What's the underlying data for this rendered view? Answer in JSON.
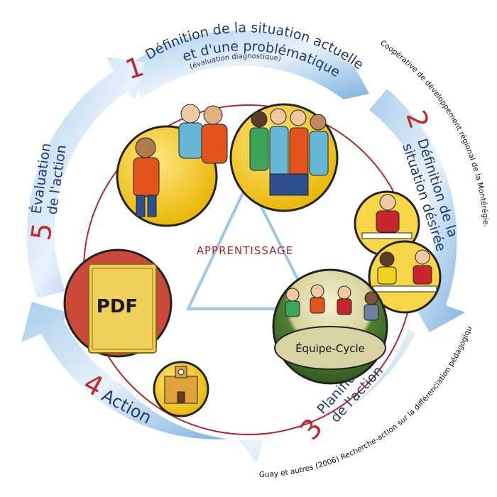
{
  "steps": [
    {
      "number": "1",
      "lines": [
        "Définition de la situation actuelle",
        "et d'une problématique"
      ],
      "sub": "(évaluation diagnostique)"
    },
    {
      "number": "2",
      "lines": [
        "Définition de la",
        "situation désirée"
      ]
    },
    {
      "number": "3",
      "lines": [
        "Planification",
        "de l'action"
      ]
    },
    {
      "number": "4",
      "lines": [
        "Action"
      ]
    },
    {
      "number": "5",
      "lines": [
        "Évaluation",
        "de l'action"
      ]
    }
  ],
  "center": {
    "label": "APPRENTISSAGE",
    "team_label": "Équipe-Cycle",
    "pdf_label": "PDF"
  },
  "credits": {
    "right": "Coopérative de développement régional de la Montérégie.",
    "bottom": "Guay et autres (2006) Recherche-action sur la différenciation pédagogique."
  },
  "colors": {
    "ring_blue": "#7fb2e0",
    "ring_light": "#e6f0fa",
    "inner_ring": "#b3262b",
    "triangle": "#9cc6ea",
    "number_red": "#c0282d",
    "text_navy": "#1f3a6b",
    "circle_yellow": "#f2c81b",
    "circle_green": "#4a7a2e",
    "pdf_bg": "#c94a3a",
    "book_yellow": "#f0cf5a"
  }
}
